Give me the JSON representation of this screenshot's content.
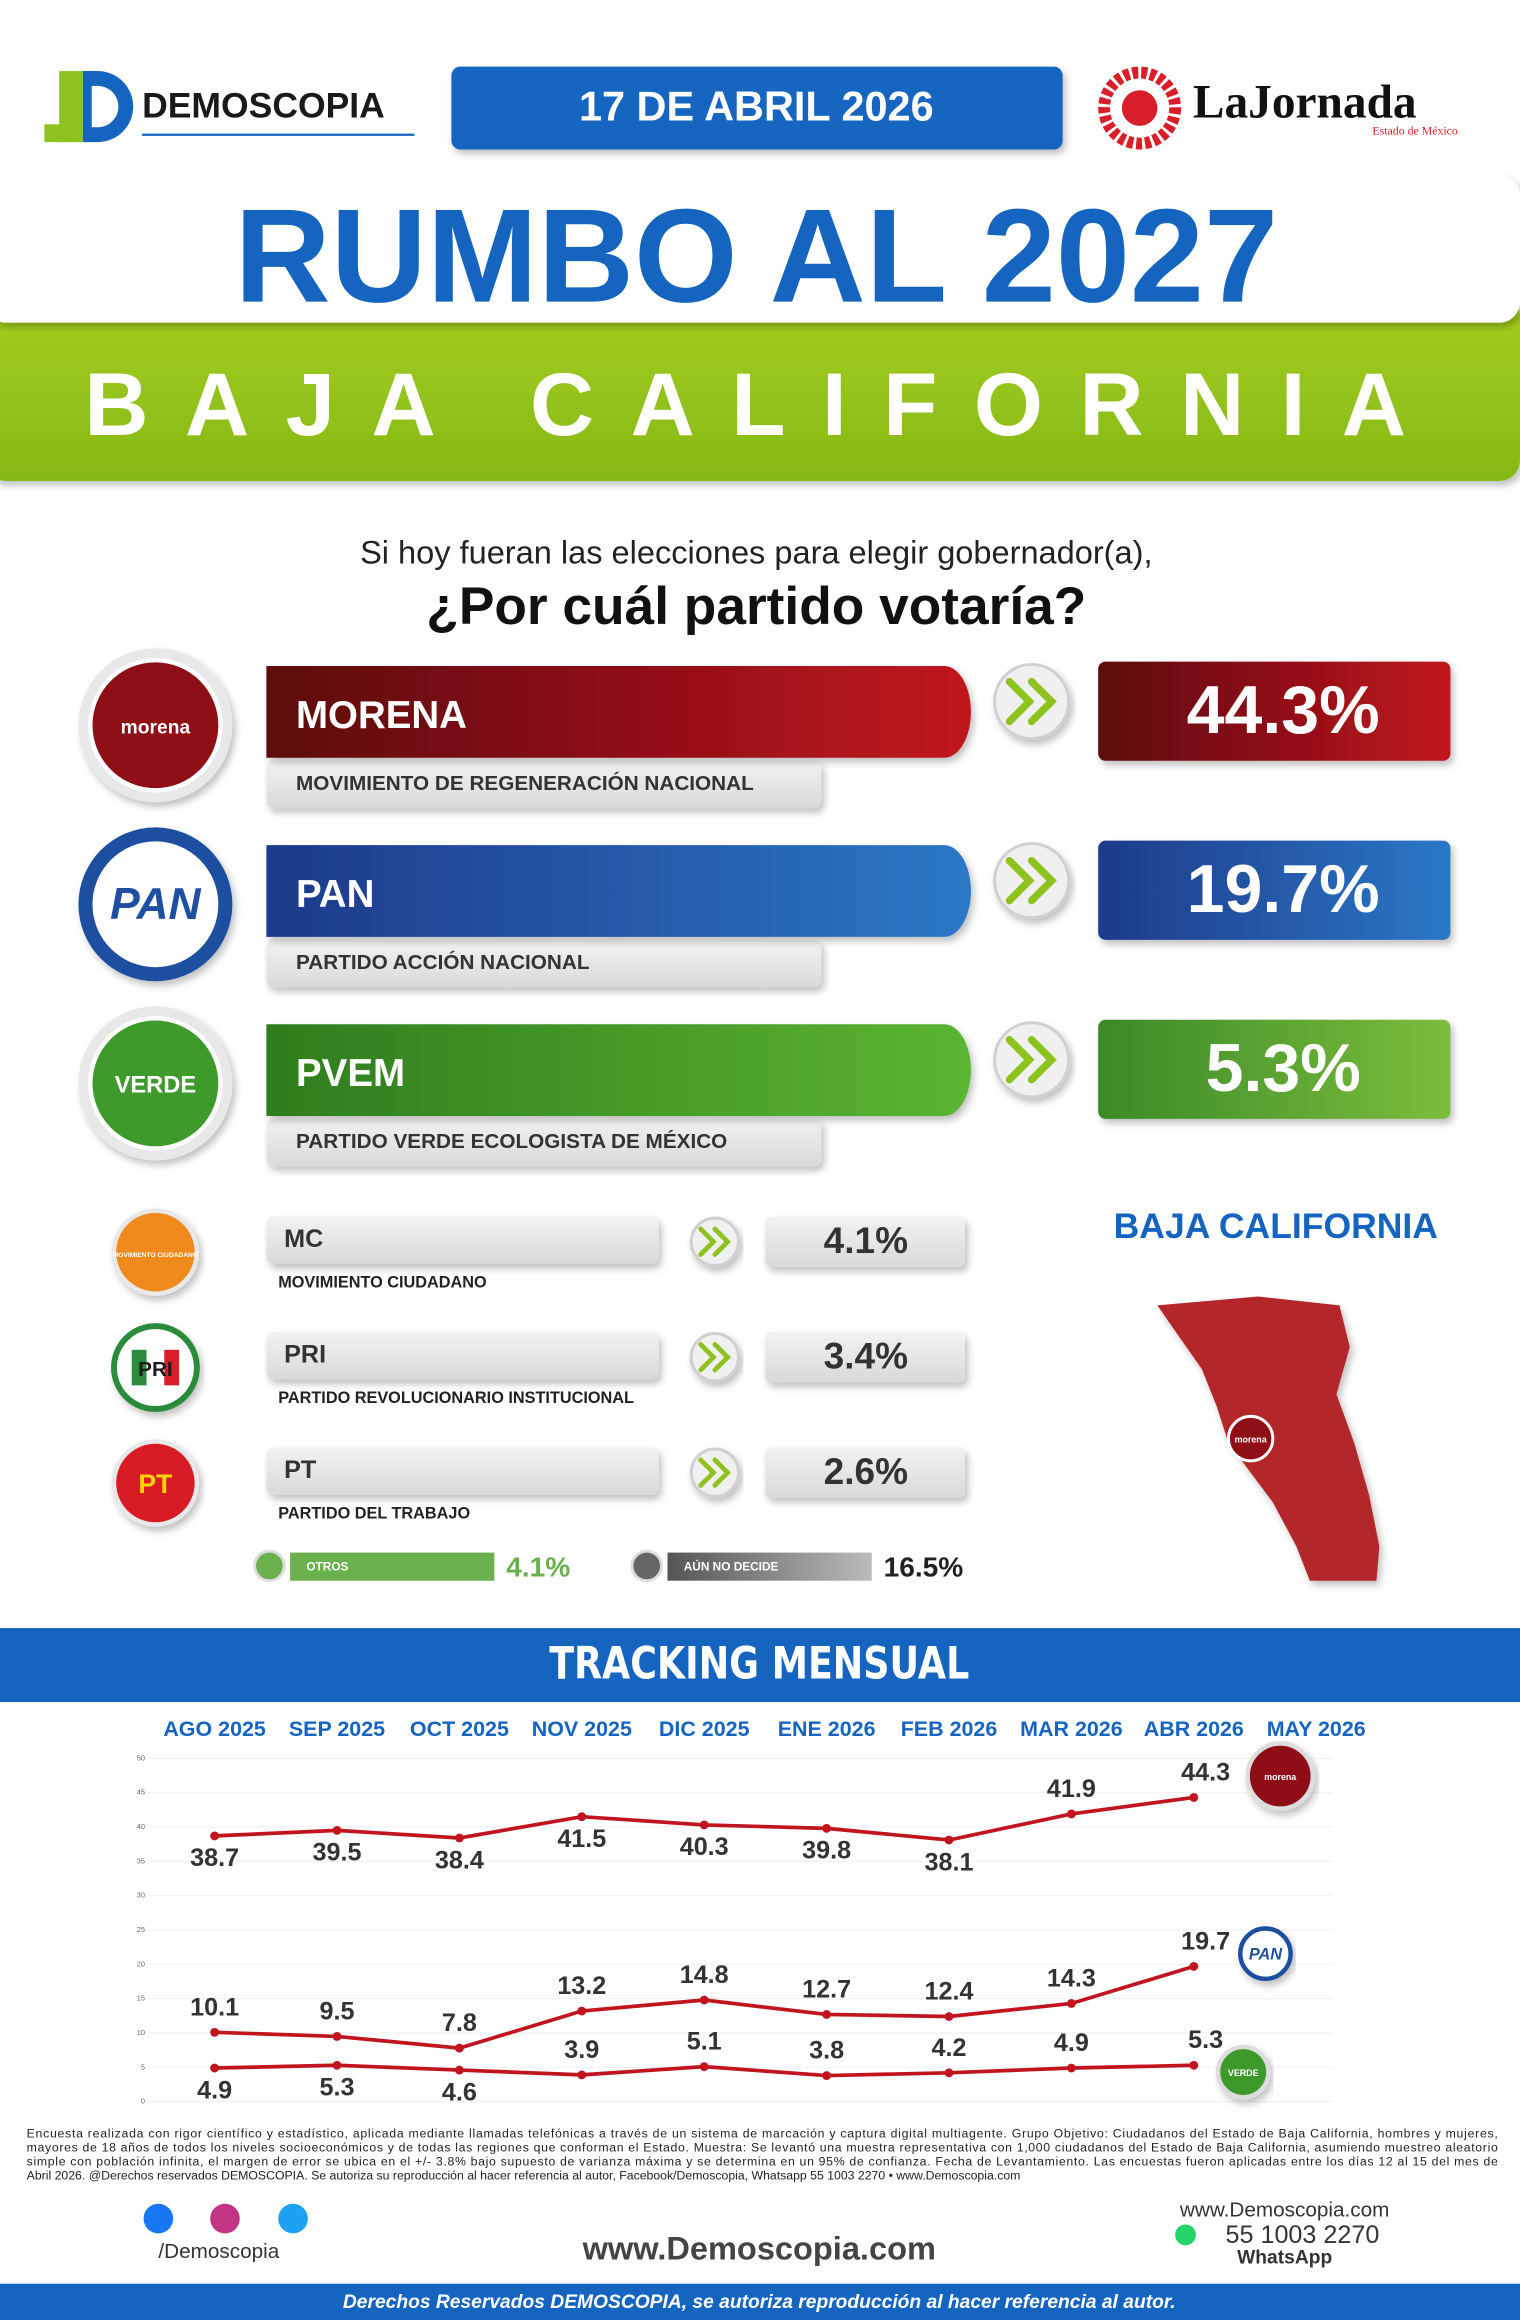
{
  "header": {
    "logo": "DEMOSCOPIA",
    "date": "17 DE ABRIL 2026",
    "brand": "LaJornada",
    "brand_sub": "Estado de México",
    "title": "RUMBO AL 2027",
    "subtitle": "BAJA CALIFORNIA"
  },
  "question": {
    "line1": "Si hoy fueran las elecciones para elegir gobernador(a),",
    "line2": "¿Por cuál partido votaría?"
  },
  "main_parties": [
    {
      "logo": "morena",
      "name": "MORENA",
      "full_name": "MOVIMIENTO DE REGENERACIÓN NACIONAL",
      "result": "44.3%"
    },
    {
      "logo": "PAN",
      "name": "PAN",
      "full_name": "PARTIDO ACCIÓN NACIONAL",
      "result": "19.7%"
    },
    {
      "logo": "VERDE",
      "name": "PVEM",
      "full_name": "PARTIDO VERDE ECOLOGISTA DE MÉXICO",
      "result": "5.3%"
    }
  ],
  "minor_parties": [
    {
      "logo": "MOVIMIENTO CIUDADANO",
      "name": "MC",
      "full_name": "MOVIMIENTO CIUDADANO",
      "result": "4.1%"
    },
    {
      "logo": "PRI",
      "name": "PRI",
      "full_name": "PARTIDO REVOLUCIONARIO INSTITUCIONAL",
      "result": "3.4%"
    },
    {
      "logo": "PT",
      "name": "PT",
      "full_name": "PARTIDO DEL TRABAJO",
      "result": "2.6%"
    }
  ],
  "other_answers": [
    {
      "label": "OTROS",
      "result": "4.1%"
    },
    {
      "label": "AÚN NO DECIDE",
      "result": "16.5%"
    }
  ],
  "map": {
    "title": "BAJA CALIFORNIA",
    "marker": "morena"
  },
  "chart_data": {
    "type": "line",
    "title": "TRACKING MENSUAL",
    "categories": [
      "AGO 2025",
      "SEP 2025",
      "OCT 2025",
      "NOV 2025",
      "DIC 2025",
      "ENE 2026",
      "FEB 2026",
      "MAR 2026",
      "ABR 2026",
      "MAY 2026"
    ],
    "series": [
      {
        "name": "morena",
        "color": "#c0151f",
        "values": [
          38.7,
          39.5,
          38.4,
          41.5,
          40.3,
          39.8,
          38.1,
          41.9,
          44.3,
          null
        ]
      },
      {
        "name": "PAN",
        "color": "#c0151f",
        "values": [
          10.1,
          9.5,
          7.8,
          13.2,
          14.8,
          12.7,
          12.4,
          14.3,
          19.7,
          null
        ]
      },
      {
        "name": "VERDE",
        "color": "#c0151f",
        "values": [
          4.9,
          5.3,
          4.6,
          3.9,
          5.1,
          3.8,
          4.2,
          4.9,
          5.3,
          null
        ]
      }
    ],
    "ylim": [
      0,
      50
    ],
    "yticks": [
      0,
      5,
      10,
      15,
      20,
      25,
      30,
      35,
      40,
      45,
      50
    ],
    "grid": true
  },
  "footer": {
    "methodology": [
      "Encuesta realizada con rigor científico y estadístico, aplicada mediante llamadas telefónicas a través de un sistema de marcación y captura digital multiagente. Grupo Objetivo: Ciudadanos del Estado de Baja California, hombres y mujeres,",
      "mayores de 18 años de todos los niveles socioeconómicos y de todas las regiones que conforman el Estado. Muestra: Se levantó una muestra representativa con 1,000 ciudadanos del Estado de Baja California, asumiendo muestreo aleatorio",
      "simple con población infinita, el margen de error se ubica en el +/- 3.8% bajo supuesto de varianza máxima y se determina en un 95% de confianza. Fecha de Levantamiento. Las encuestas fueron aplicadas entre los días 12 al 15 del mes de",
      "Abril 2026. @Derechos reservados DEMOSCOPIA. Se autoriza su reproducción al hacer referencia al autor, Facebook/Demoscopia, Whatsapp 55 1003 2270 • www.Demoscopia.com"
    ],
    "social": "/Demoscopia",
    "website": "www.Demoscopia.com",
    "contact_web": "www.Demoscopia.com",
    "phone": "55 1003 2270",
    "phone_label": "WhatsApp",
    "rights": "Derechos Reservados DEMOSCOPIA, se autoriza reproducción al hacer referencia al autor."
  }
}
